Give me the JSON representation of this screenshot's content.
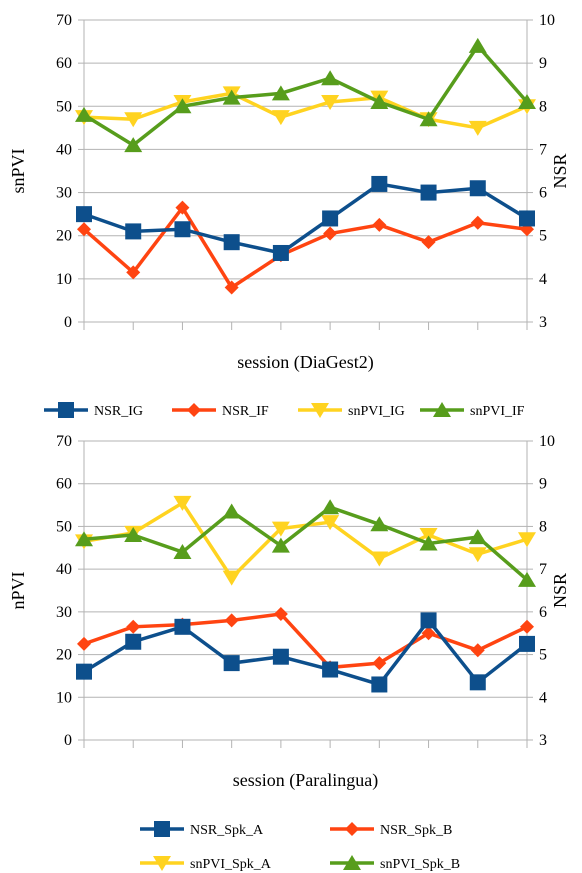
{
  "chart_data": [
    {
      "type": "line",
      "xlabel": "session (DiaGest2)",
      "ylabel": "snPVI",
      "ylabel_right": "NSR",
      "ylim": [
        0,
        70
      ],
      "y_ticks": [
        "0",
        "10",
        "20",
        "30",
        "40",
        "50",
        "60",
        "70"
      ],
      "ylim_right": [
        3,
        10
      ],
      "y_ticks_right": [
        "3",
        "4",
        "5",
        "6",
        "7",
        "8",
        "9",
        "10"
      ],
      "grid": true,
      "legend_position": "bottom",
      "x": [
        1,
        2,
        3,
        4,
        5,
        6,
        7,
        8,
        9,
        10
      ],
      "series": [
        {
          "name": "NSR_IG",
          "axis": "right",
          "marker": "square",
          "color": "#0d4f8c",
          "values": [
            5.5,
            5.1,
            5.15,
            4.85,
            4.6,
            5.4,
            6.2,
            6.0,
            6.1,
            5.4
          ]
        },
        {
          "name": "NSR_IF",
          "axis": "right",
          "marker": "diamond",
          "color": "#ff4411",
          "values": [
            5.15,
            4.15,
            5.65,
            3.8,
            4.55,
            5.05,
            5.25,
            4.85,
            5.3,
            5.15
          ]
        },
        {
          "name": "snPVI_IG",
          "axis": "left",
          "marker": "triangle-down",
          "color": "#ffd320",
          "values": [
            47.5,
            47,
            51,
            53,
            47.5,
            51,
            52,
            47,
            45,
            50
          ]
        },
        {
          "name": "snPVI_IF",
          "axis": "left",
          "marker": "triangle-up",
          "color": "#579d1c",
          "values": [
            48,
            41,
            50,
            52,
            53,
            56.5,
            51,
            47,
            64,
            51
          ]
        }
      ]
    },
    {
      "type": "line",
      "xlabel": "session (Paralingua)",
      "ylabel": "nPVI",
      "ylabel_right": "NSR",
      "ylim": [
        0,
        70
      ],
      "y_ticks": [
        "0",
        "10",
        "20",
        "30",
        "40",
        "50",
        "60",
        "70"
      ],
      "ylim_right": [
        3,
        10
      ],
      "y_ticks_right": [
        "3",
        "4",
        "5",
        "6",
        "7",
        "8",
        "9",
        "10"
      ],
      "grid": true,
      "legend_position": "bottom",
      "x": [
        1,
        2,
        3,
        4,
        5,
        6,
        7,
        8,
        9,
        10
      ],
      "series": [
        {
          "name": "NSR_Spk_A",
          "axis": "right",
          "marker": "square",
          "color": "#0d4f8c",
          "values": [
            4.6,
            5.3,
            5.65,
            4.8,
            4.95,
            4.65,
            4.3,
            5.8,
            4.35,
            5.25
          ]
        },
        {
          "name": "NSR_Spk_B",
          "axis": "right",
          "marker": "diamond",
          "color": "#ff4411",
          "values": [
            5.25,
            5.65,
            5.7,
            5.8,
            5.95,
            4.7,
            4.8,
            5.5,
            5.1,
            5.65
          ]
        },
        {
          "name": "snPVI_Spk_A",
          "axis": "left",
          "marker": "triangle-down",
          "color": "#ffd320",
          "values": [
            46.5,
            48.5,
            55.5,
            38,
            49.5,
            51,
            42.5,
            48,
            43.5,
            47
          ]
        },
        {
          "name": "snPVI_Spk_B",
          "axis": "left",
          "marker": "triangle-up",
          "color": "#579d1c",
          "values": [
            47,
            48,
            44,
            53.5,
            45.5,
            54.5,
            50.5,
            46,
            47.5,
            37.5
          ]
        }
      ]
    }
  ]
}
